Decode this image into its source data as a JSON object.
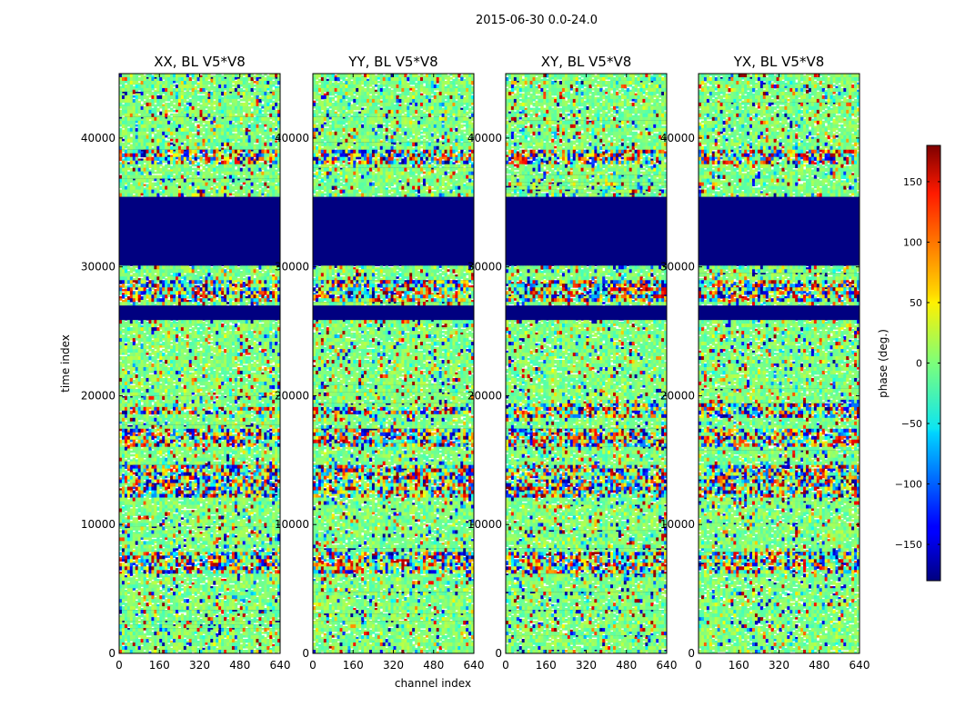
{
  "chart_data": {
    "type": "heatmap",
    "suptitle": "2015-06-30 0.0-24.0",
    "xlabel": "channel index",
    "ylabel": "time index",
    "xlim": [
      0,
      640
    ],
    "ylim": [
      0,
      45000
    ],
    "x_ticks": [
      0,
      160,
      320,
      480,
      640
    ],
    "y_ticks": [
      0,
      10000,
      20000,
      30000,
      40000
    ],
    "colormap": "jet",
    "colorbar": {
      "label": "phase (deg.)",
      "range": [
        -180,
        180
      ],
      "ticks": [
        -150,
        -100,
        -50,
        0,
        50,
        100,
        150
      ],
      "tick_labels": [
        "−150",
        "−100",
        "−50",
        "0",
        "50",
        "100",
        "150"
      ]
    },
    "panels": [
      {
        "title": "XX, BL V5*V8",
        "polarization": "XX"
      },
      {
        "title": "YY, BL V5*V8",
        "polarization": "YY"
      },
      {
        "title": "XY, BL V5*V8",
        "polarization": "XY"
      },
      {
        "title": "YX, BL V5*V8",
        "polarization": "YX"
      }
    ],
    "flagged_time_ranges": [
      [
        26000,
        27000
      ],
      [
        30200,
        35500
      ]
    ],
    "flagged_value_deg": -180,
    "noisy_time_bands": [
      {
        "range": [
          16000,
          17500
        ],
        "panels": "all"
      },
      {
        "range": [
          18500,
          19200
        ],
        "panels": "XX,YY"
      },
      {
        "range": [
          18300,
          19300
        ],
        "panels": "XY,YX"
      },
      {
        "range": [
          6200,
          7800
        ],
        "panels": "all"
      },
      {
        "range": [
          38000,
          39000
        ],
        "panels": "all"
      },
      {
        "range": [
          27200,
          29000
        ],
        "panels": "all"
      },
      {
        "range": [
          12000,
          14500
        ],
        "panels": "all"
      }
    ]
  }
}
